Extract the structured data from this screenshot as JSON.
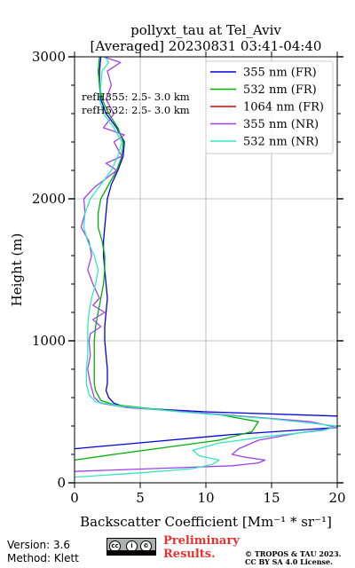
{
  "chart_data": {
    "type": "line",
    "title_line1": "pollyxt_tau at Tel_Aviv",
    "title_line2": "[Averaged] 20230831 03:41-04:40",
    "xlabel": "Backscatter Coefficient [Mm⁻¹ * sr⁻¹]",
    "ylabel": "Height (m)",
    "xlim": [
      0,
      20
    ],
    "ylim": [
      0,
      3000
    ],
    "xticks": [
      "0",
      "5",
      "10",
      "15",
      "20"
    ],
    "yticks": [
      "0",
      "1000",
      "2000",
      "3000"
    ],
    "grid": true,
    "legend_position": "top-right",
    "annotations": [
      "refH355:  2.5- 3.0 km",
      "refH532:  2.5- 3.0 km"
    ],
    "series": [
      {
        "name": "355 nm (FR)",
        "color": "#0000dd",
        "points": [
          [
            0,
            240
          ],
          [
            6,
            290
          ],
          [
            12,
            340
          ],
          [
            20,
            390
          ],
          [
            28,
            420
          ],
          [
            30,
            440
          ],
          [
            20,
            470
          ],
          [
            10,
            500
          ],
          [
            4,
            530
          ],
          [
            3,
            560
          ],
          [
            2.6,
            600
          ],
          [
            2.4,
            650
          ],
          [
            2.5,
            700
          ],
          [
            2.5,
            800
          ],
          [
            2.4,
            900
          ],
          [
            2.3,
            1000
          ],
          [
            2.3,
            1100
          ],
          [
            2.4,
            1200
          ],
          [
            2.5,
            1300
          ],
          [
            2.4,
            1400
          ],
          [
            2.3,
            1500
          ],
          [
            2.2,
            1600
          ],
          [
            2.2,
            1700
          ],
          [
            2.3,
            1800
          ],
          [
            2.4,
            1900
          ],
          [
            2.5,
            2000
          ],
          [
            2.8,
            2100
          ],
          [
            3.3,
            2200
          ],
          [
            3.7,
            2300
          ],
          [
            3.8,
            2400
          ],
          [
            3.2,
            2500
          ],
          [
            2.4,
            2600
          ],
          [
            2.0,
            2700
          ],
          [
            1.9,
            2800
          ],
          [
            1.9,
            2900
          ],
          [
            2.0,
            3000
          ]
        ]
      },
      {
        "name": "532 nm (FR)",
        "color": "#00b000",
        "points": [
          [
            0,
            160
          ],
          [
            3,
            200
          ],
          [
            7,
            250
          ],
          [
            11,
            300
          ],
          [
            13.5,
            360
          ],
          [
            14,
            430
          ],
          [
            11,
            480
          ],
          [
            6,
            520
          ],
          [
            3,
            550
          ],
          [
            2,
            580
          ],
          [
            1.6,
            650
          ],
          [
            1.5,
            700
          ],
          [
            1.5,
            800
          ],
          [
            1.5,
            900
          ],
          [
            1.5,
            1000
          ],
          [
            1.6,
            1100
          ],
          [
            1.8,
            1200
          ],
          [
            2.0,
            1300
          ],
          [
            2.2,
            1400
          ],
          [
            2.3,
            1500
          ],
          [
            2.3,
            1600
          ],
          [
            2.1,
            1700
          ],
          [
            1.8,
            1800
          ],
          [
            1.8,
            1900
          ],
          [
            2.0,
            2000
          ],
          [
            2.6,
            2100
          ],
          [
            3.2,
            2200
          ],
          [
            3.6,
            2300
          ],
          [
            3.7,
            2400
          ],
          [
            3.3,
            2500
          ],
          [
            2.6,
            2600
          ],
          [
            2.1,
            2700
          ],
          [
            1.9,
            2800
          ],
          [
            1.8,
            2900
          ],
          [
            1.9,
            3000
          ]
        ]
      },
      {
        "name": "1064 nm (FR)",
        "color": "#dd0000",
        "points": []
      },
      {
        "name": "355 nm (NR)",
        "color": "#a040f0",
        "points": [
          [
            0,
            80
          ],
          [
            6,
            100
          ],
          [
            12,
            120
          ],
          [
            14,
            140
          ],
          [
            14.5,
            160
          ],
          [
            13,
            180
          ],
          [
            12,
            200
          ],
          [
            12.5,
            240
          ],
          [
            14,
            300
          ],
          [
            17,
            350
          ],
          [
            20,
            390
          ],
          [
            18,
            430
          ],
          [
            10,
            490
          ],
          [
            4,
            530
          ],
          [
            2,
            560
          ],
          [
            1.5,
            600
          ],
          [
            1.2,
            700
          ],
          [
            1.0,
            800
          ],
          [
            1.2,
            900
          ],
          [
            1.1,
            1000
          ],
          [
            1.2,
            1050
          ],
          [
            2.0,
            1100
          ],
          [
            1.4,
            1150
          ],
          [
            2.3,
            1200
          ],
          [
            1.4,
            1250
          ],
          [
            1.9,
            1300
          ],
          [
            1.4,
            1400
          ],
          [
            1.0,
            1500
          ],
          [
            1.3,
            1600
          ],
          [
            1.1,
            1700
          ],
          [
            0.5,
            1800
          ],
          [
            0.8,
            1900
          ],
          [
            0.7,
            2000
          ],
          [
            1.5,
            2080
          ],
          [
            2.5,
            2150
          ],
          [
            3.2,
            2200
          ],
          [
            2.4,
            2250
          ],
          [
            3.6,
            2300
          ],
          [
            3.0,
            2400
          ],
          [
            3.8,
            2450
          ],
          [
            2.2,
            2500
          ],
          [
            3.0,
            2600
          ],
          [
            2.4,
            2700
          ],
          [
            2.8,
            2800
          ],
          [
            2.5,
            2900
          ],
          [
            3.5,
            2960
          ],
          [
            2.2,
            3000
          ]
        ]
      },
      {
        "name": "532 nm (NR)",
        "color": "#30e8c0",
        "points": [
          [
            0,
            40
          ],
          [
            5,
            70
          ],
          [
            9,
            100
          ],
          [
            10.5,
            130
          ],
          [
            11,
            160
          ],
          [
            9.5,
            190
          ],
          [
            9,
            230
          ],
          [
            11,
            280
          ],
          [
            15,
            330
          ],
          [
            19,
            370
          ],
          [
            20,
            400
          ],
          [
            15,
            450
          ],
          [
            8,
            500
          ],
          [
            3.5,
            540
          ],
          [
            1.6,
            570
          ],
          [
            1.1,
            620
          ],
          [
            0.9,
            700
          ],
          [
            0.9,
            800
          ],
          [
            1.0,
            900
          ],
          [
            1.0,
            1000
          ],
          [
            1.0,
            1100
          ],
          [
            1.1,
            1200
          ],
          [
            1.3,
            1300
          ],
          [
            1.6,
            1400
          ],
          [
            1.8,
            1500
          ],
          [
            1.5,
            1600
          ],
          [
            1.0,
            1700
          ],
          [
            0.7,
            1800
          ],
          [
            0.8,
            1900
          ],
          [
            1.2,
            2000
          ],
          [
            2.0,
            2100
          ],
          [
            2.8,
            2200
          ],
          [
            3.3,
            2300
          ],
          [
            3.6,
            2400
          ],
          [
            3.0,
            2500
          ],
          [
            2.2,
            2600
          ],
          [
            1.9,
            2700
          ],
          [
            2.0,
            2800
          ],
          [
            2.1,
            2900
          ],
          [
            2.6,
            2960
          ],
          [
            2.3,
            3000
          ]
        ]
      }
    ]
  },
  "footer": {
    "version": "Version: 3.6",
    "method": "Method: Klett",
    "preliminary_line1": "Preliminary",
    "preliminary_line2": "Results.",
    "copyright_line1": "© TROPOS & TAU 2023.",
    "copyright_line2": "CC BY SA 4.0 License.",
    "license_badge": [
      "cc",
      "i",
      "©"
    ],
    "license_badge_caption": "BY  SA"
  }
}
